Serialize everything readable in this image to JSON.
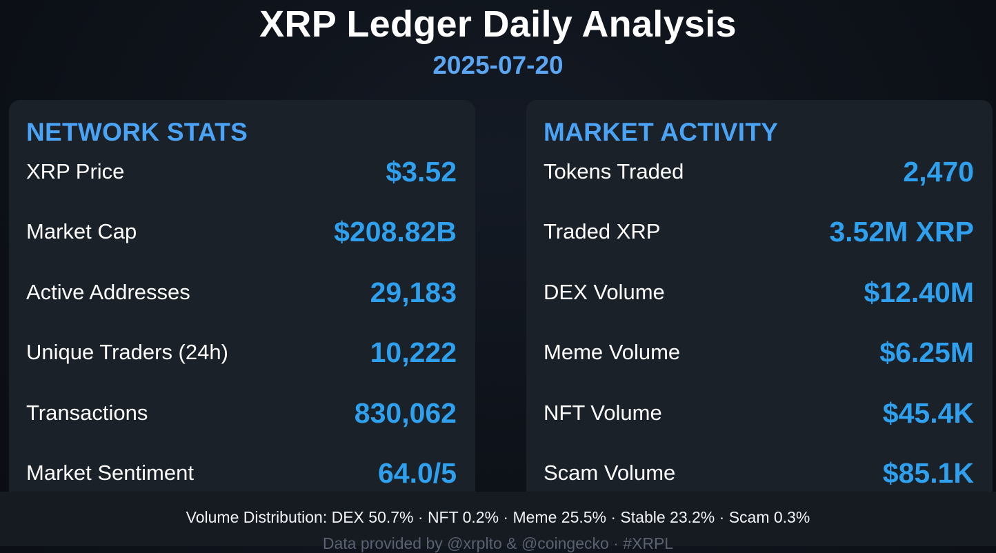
{
  "header": {
    "title": "XRP Ledger Daily Analysis",
    "date": "2025-07-20"
  },
  "network_stats": {
    "heading": "NETWORK STATS",
    "rows": [
      {
        "label": "XRP Price",
        "value": "$3.52"
      },
      {
        "label": "Market Cap",
        "value": "$208.82B"
      },
      {
        "label": "Active Addresses",
        "value": "29,183"
      },
      {
        "label": "Unique Traders (24h)",
        "value": "10,222"
      },
      {
        "label": "Transactions",
        "value": "830,062"
      },
      {
        "label": "Market Sentiment",
        "value": "64.0/5"
      }
    ]
  },
  "market_activity": {
    "heading": "MARKET ACTIVITY",
    "rows": [
      {
        "label": "Tokens Traded",
        "value": "2,470"
      },
      {
        "label": "Traded XRP",
        "value": "3.52M XRP"
      },
      {
        "label": "DEX Volume",
        "value": "$12.40M"
      },
      {
        "label": "Meme Volume",
        "value": "$6.25M"
      },
      {
        "label": "NFT Volume",
        "value": "$45.4K"
      },
      {
        "label": "Scam Volume",
        "value": "$85.1K"
      }
    ]
  },
  "footer": {
    "distribution": "Volume Distribution: DEX 50.7% · NFT 0.2% · Meme 25.5% · Stable 23.2% · Scam 0.3%",
    "credit": "Data provided by @xrplto & @coingecko · #XRPL"
  },
  "colors": {
    "accent": "#2ea0ee",
    "heading": "#4aa3f5",
    "date": "#5aa6f2",
    "card_bg": "#1b2129",
    "page_bg": "#0d1118"
  }
}
